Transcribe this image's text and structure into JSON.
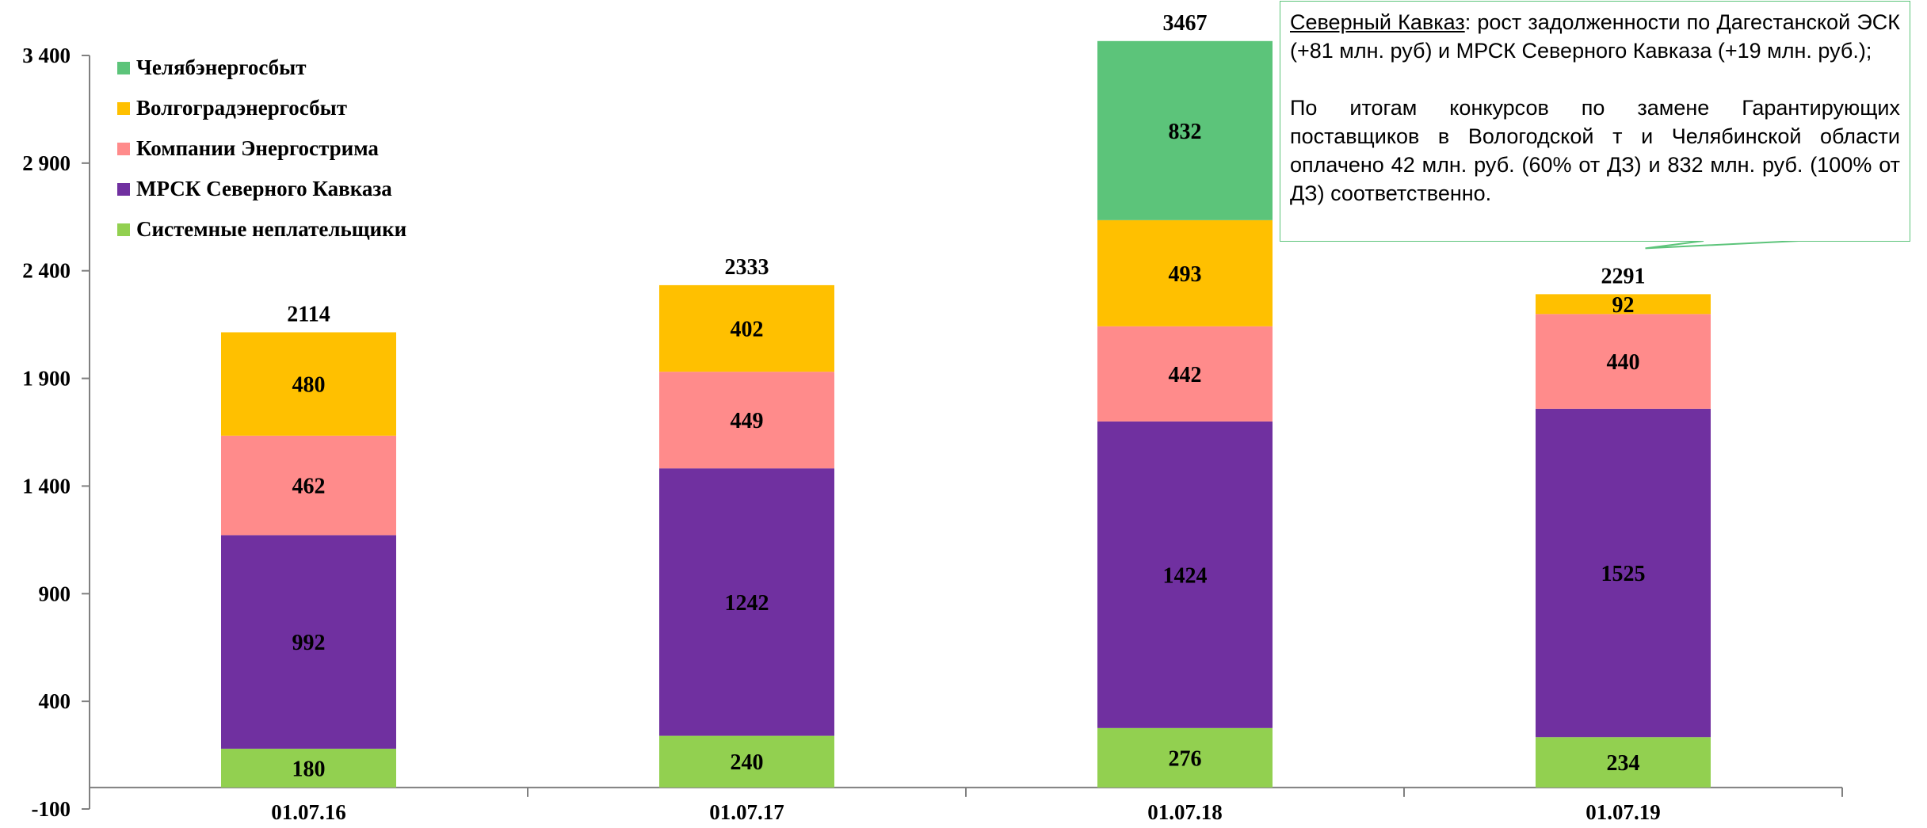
{
  "chart_data": {
    "type": "stacked_bar",
    "categories": [
      "01.07.16",
      "01.07.17",
      "01.07.18",
      "01.07.19"
    ],
    "series": [
      {
        "name": "Системные неплательщики",
        "color": "#92d050",
        "values": [
          180,
          240,
          276,
          234
        ]
      },
      {
        "name": "МРСК Северного Кавказа",
        "color": "#7030a0",
        "values": [
          992,
          1242,
          1424,
          1525
        ]
      },
      {
        "name": "Компании Энергострима",
        "color": "#ff8b8b",
        "values": [
          462,
          449,
          442,
          440
        ]
      },
      {
        "name": "Волгоградэнергосбыт",
        "color": "#ffc000",
        "values": [
          480,
          402,
          493,
          92
        ]
      },
      {
        "name": "Челябэнергосбыт",
        "color": "#5cc47a",
        "values": [
          0,
          0,
          832,
          0
        ]
      }
    ],
    "totals": [
      "2114",
      "2333",
      "3467",
      "2291"
    ],
    "yticks": [
      {
        "value": 3400,
        "label": "3 400"
      },
      {
        "value": 2900,
        "label": "2 900"
      },
      {
        "value": 2400,
        "label": "2 400"
      },
      {
        "value": 1900,
        "label": "1 900"
      },
      {
        "value": 1400,
        "label": "1 400"
      },
      {
        "value": 900,
        "label": "900"
      },
      {
        "value": 400,
        "label": "400"
      },
      {
        "value": -100,
        "label": "-100"
      }
    ],
    "ylim": [
      -100,
      3400
    ],
    "legend": {
      "placement": "top-left",
      "order": [
        "Челябэнергосбыт",
        "Волгоградэнергосбыт",
        "Компании Энергострима",
        "МРСК Северного Кавказа",
        "Системные неплательщики"
      ]
    },
    "annotation": {
      "p1_link": "Северный Кавказ",
      "p1_rest": ": рост задолженности по Дагестанской ЭСК (+81 млн. руб) и МРСК Северного Кавказа (+19 млн. руб.);",
      "p2": "По итогам конкурсов по  замене Гарантирующих поставщиков в Вологодской т и Челябинской области оплачено 42 млн. руб. (60% от ДЗ) и 832 млн. руб. (100% от ДЗ) соответственно.",
      "border_color": "#5cc47a",
      "points_to": "01.07.19"
    }
  }
}
